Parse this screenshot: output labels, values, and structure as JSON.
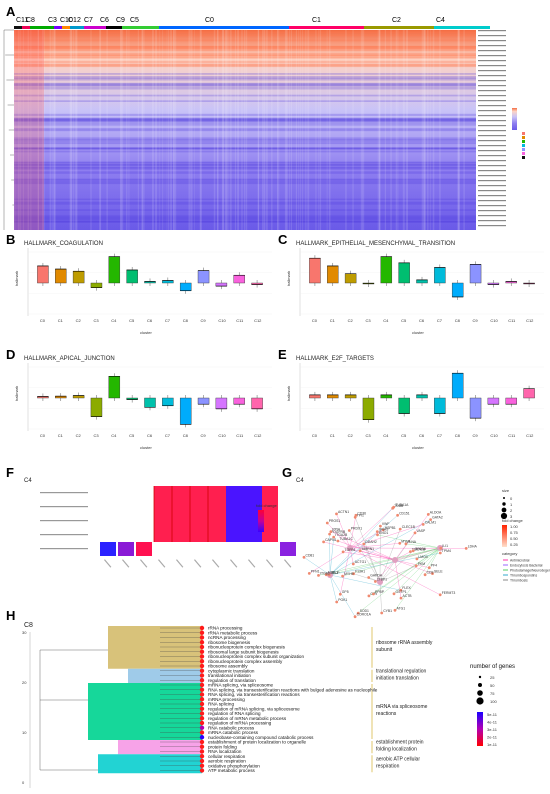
{
  "panels": {
    "a": {
      "letter": "A"
    },
    "b": {
      "letter": "B",
      "title": "HALLMARK_COAGULATION"
    },
    "c": {
      "letter": "C",
      "title": "HALLMARK_EPITHELIAL_MESENCHYMAL_TRANSITION"
    },
    "d": {
      "letter": "D",
      "title": "HALLMARK_APICAL_JUNCTION"
    },
    "e": {
      "letter": "E",
      "title": "HALLMARK_E2F_TARGETS"
    },
    "f": {
      "letter": "F",
      "sub": "C4",
      "legend_title": "fold change"
    },
    "g": {
      "letter": "G",
      "sub": "C4",
      "legend_size": "size",
      "legend_fc": "fold change",
      "legend_cat": "category"
    },
    "h": {
      "letter": "H",
      "sub": "C8"
    }
  },
  "heatmap": {
    "cluster_labels": [
      "C11",
      "C8",
      "C3",
      "C10",
      "C12",
      "C7",
      "C6",
      "C9",
      "C5",
      "C0",
      "C1",
      "C2",
      "C4"
    ]
  },
  "boxplots": {
    "x_label": "cluster",
    "y_label": "hallmark",
    "categories": [
      "C0",
      "C1",
      "C2",
      "C3",
      "C4",
      "C5",
      "C6",
      "C7",
      "C8",
      "C9",
      "C10",
      "C11",
      "C12"
    ]
  },
  "chart_data": [
    {
      "type": "bar",
      "title": "HALLMARK_COAGULATION",
      "categories": [
        "C0",
        "C1",
        "C2",
        "C3",
        "C4",
        "C5",
        "C6",
        "C7",
        "C8",
        "C9",
        "C10",
        "C11",
        "C12"
      ],
      "values": [
        0.55,
        0.45,
        0.38,
        -0.15,
        0.85,
        0.42,
        0.05,
        0.08,
        -0.25,
        0.4,
        -0.1,
        0.25,
        -0.05
      ]
    },
    {
      "type": "bar",
      "title": "HALLMARK_EPITHELIAL_MESENCHYMAL_TRANSITION",
      "categories": [
        "C0",
        "C1",
        "C2",
        "C3",
        "C4",
        "C5",
        "C6",
        "C7",
        "C8",
        "C9",
        "C10",
        "C11",
        "C12"
      ],
      "values": [
        0.8,
        0.55,
        0.3,
        -0.02,
        0.85,
        0.65,
        0.1,
        0.5,
        -0.45,
        0.6,
        -0.05,
        0.05,
        -0.02
      ]
    },
    {
      "type": "bar",
      "title": "HALLMARK_APICAL_JUNCTION",
      "categories": [
        "C0",
        "C1",
        "C2",
        "C3",
        "C4",
        "C5",
        "C6",
        "C7",
        "C8",
        "C9",
        "C10",
        "C11",
        "C12"
      ],
      "values": [
        0.05,
        0.06,
        0.08,
        -0.6,
        0.7,
        -0.05,
        -0.3,
        -0.25,
        -0.85,
        -0.2,
        -0.35,
        -0.2,
        -0.35
      ]
    },
    {
      "type": "bar",
      "title": "HALLMARK_E2F_TARGETS",
      "categories": [
        "C0",
        "C1",
        "C2",
        "C3",
        "C4",
        "C5",
        "C6",
        "C7",
        "C8",
        "C9",
        "C10",
        "C11",
        "C12"
      ],
      "values": [
        0.1,
        0.1,
        0.1,
        -0.7,
        0.1,
        -0.5,
        0.1,
        -0.5,
        0.8,
        -0.65,
        -0.2,
        -0.2,
        0.3
      ]
    }
  ],
  "colors": {
    "C0": "#f8766d",
    "C1": "#e18a00",
    "C2": "#be9c00",
    "C3": "#8cab00",
    "C4": "#24b700",
    "C5": "#00be70",
    "C6": "#00c1ab",
    "C7": "#00bbda",
    "C8": "#00acfc",
    "C9": "#8b93ff",
    "C10": "#d575fe",
    "C11": "#f962dd",
    "C12": "#ff65ac"
  },
  "go_terms": [
    "rRNA processing",
    "rRNA metabolic process",
    "ncRNA processing",
    "ribosome biogenesis",
    "ribonucleoprotein complex biogenesis",
    "ribosomal large subunit biogenesis",
    "ribonucleoprotein complex subunit organization",
    "ribonucleoprotein complex assembly",
    "ribosome assembly",
    "cytoplasmic translation",
    "translational initiation",
    "regulation of translation",
    "mRNA splicing, via spliceosome",
    "RNA splicing, via transesterification reactions with bulged adenosine as nucleophile",
    "RNA splicing, via transesterification reactions",
    "mRNA processing",
    "RNA splicing",
    "regulation of mRNA splicing, via spliceosome",
    "regulation of RNA splicing",
    "regulation of mRNA metabolic process",
    "regulation of mRNA processing",
    "RNA catabolic process",
    "mRNA catabolic process",
    "nucleobase-containing compound catabolic process",
    "establishment of protein localization to organelle",
    "protein folding",
    "RNA localization",
    "cellular respiration",
    "aerobic respiration",
    "oxidative phosphorylation",
    "ATP metabolic process"
  ],
  "go_groups": [
    {
      "label": "ribosome rRNA assembly subunit"
    },
    {
      "label": "translational regulation initiation translation"
    },
    {
      "label": "mRNA via spliceosome reactions"
    },
    {
      "label": "establishment protein folding localization"
    },
    {
      "label": "aerobic ATP cellular respiration"
    }
  ],
  "h_legend": {
    "size_title": "number of genes",
    "sizes": [
      "25",
      "50",
      "75",
      "100"
    ],
    "p_ticks": [
      "5e-11",
      "4e-11",
      "3e-11",
      "2e-11",
      "1e-11"
    ]
  },
  "network_genes": [
    "ACTN1",
    "LTBP1",
    "ATG1",
    "FLEX",
    "CLEC1B",
    "PROS1",
    "ILI1",
    "GP9",
    "F2RL1",
    "CYB1",
    "FERMT3",
    "PF4",
    "SELP",
    "PDGFRB",
    "VWF",
    "MYL9",
    "SELE",
    "FLNA",
    "CD151",
    "VASP",
    "TUBB",
    "PPIA",
    "SOD1",
    "TUBA1A",
    "PRDX1",
    "HSPB1",
    "ACTB",
    "GSTP1",
    "CD81",
    "F13A1",
    "CD36",
    "TUBA1B",
    "ENO1",
    "PGK1",
    "GAPDH",
    "PFN1",
    "MMRN1",
    "CD9",
    "TPM4",
    "TPI1",
    "ACTG1",
    "TUBA1C",
    "LMO4",
    "GATA2",
    "DDAH2",
    "CALM1",
    "CAPN1",
    "ITGB3",
    "ITGA2B",
    "GP1BA",
    "GP5",
    "TGFB1",
    "PPBP",
    "GNAS",
    "PKM",
    "LDHA",
    "ALDOA",
    "MYH9",
    "CORO1A"
  ],
  "network_categories": [
    "Antimicrobial",
    "Endocytosis Bacterial",
    "Photodamage/Neurodegeneration",
    "Thrombospondins",
    "Thrombosis"
  ],
  "network_size_legend": [
    "0",
    "1",
    "2",
    "3"
  ],
  "network_fc_legend": [
    "1.00",
    "0.75",
    "0.50",
    "0.25"
  ]
}
